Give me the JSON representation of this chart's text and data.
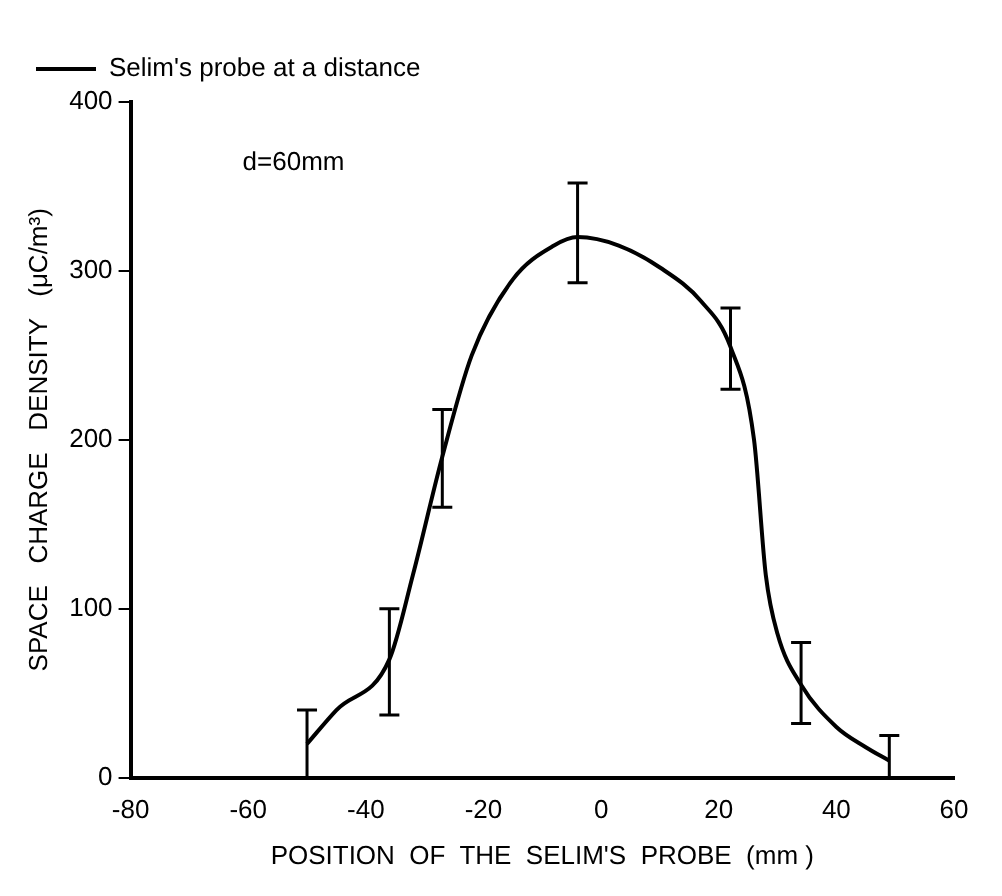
{
  "chart_data": {
    "type": "line",
    "xlabel": "POSITION  OF  THE  SELIM'S  PROBE  (mm )",
    "ylabel": "SPACE   CHARGE   DENSITY   (μC/m³)",
    "annotations": [
      "d=60mm"
    ],
    "series": [
      {
        "name": "Selim's probe at a distance",
        "color": "#000000",
        "x": [
          -50,
          -45,
          -36,
          -32,
          -27,
          -22,
          -15,
          -8,
          -4,
          3,
          10,
          17,
          22,
          26,
          28,
          30,
          34,
          40,
          45,
          49
        ],
        "values": [
          20,
          40,
          70,
          120,
          190,
          250,
          295,
          315,
          320,
          315,
          302,
          282,
          255,
          200,
          120,
          85,
          55,
          30,
          18,
          10
        ],
        "errors": [
          [
            0,
            40
          ],
          null,
          [
            37,
            100
          ],
          null,
          [
            160,
            218
          ],
          null,
          null,
          null,
          [
            293,
            352
          ],
          null,
          null,
          null,
          [
            230,
            278
          ],
          null,
          null,
          null,
          [
            32,
            80
          ],
          null,
          null,
          [
            0,
            25
          ]
        ]
      }
    ],
    "xlim": [
      -80,
      60
    ],
    "xticks": [
      -80,
      -60,
      -40,
      -20,
      0,
      20,
      40,
      60
    ],
    "ylim": [
      0,
      400
    ],
    "yticks": [
      0,
      100,
      200,
      300,
      400
    ],
    "grid": false,
    "legend": "top left",
    "marker": "none",
    "line_style": "solid"
  }
}
